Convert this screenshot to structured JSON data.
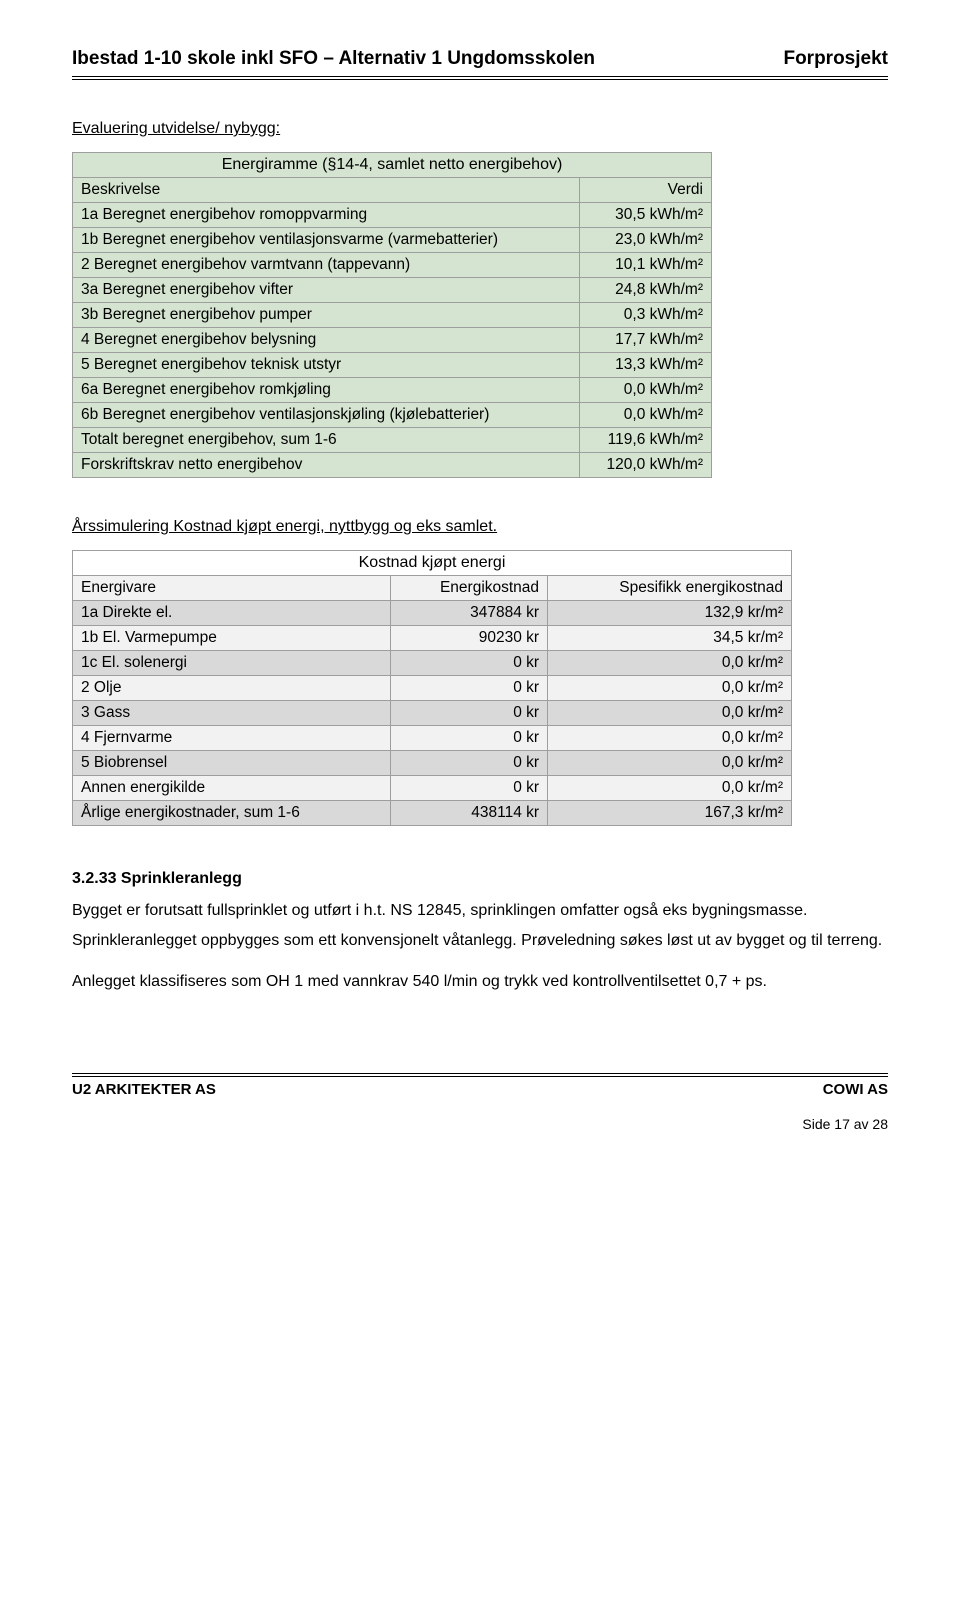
{
  "header": {
    "left": "Ibestad 1-10 skole inkl SFO – Alternativ 1 Ungdomsskolen",
    "right": "Forprosjekt"
  },
  "section1": {
    "title": "Evaluering utvidelse/ nybygg:",
    "caption": "Energiramme (§14-4, samlet netto energibehov)",
    "col_left": "Beskrivelse",
    "col_right": "Verdi",
    "rows": [
      {
        "l": "1a Beregnet energibehov romoppvarming",
        "r": "30,5 kWh/m²"
      },
      {
        "l": "1b Beregnet energibehov ventilasjonsvarme (varmebatterier)",
        "r": "23,0 kWh/m²"
      },
      {
        "l": "2 Beregnet energibehov varmtvann (tappevann)",
        "r": "10,1 kWh/m²"
      },
      {
        "l": "3a Beregnet energibehov vifter",
        "r": "24,8 kWh/m²"
      },
      {
        "l": "3b Beregnet energibehov pumper",
        "r": "0,3 kWh/m²"
      },
      {
        "l": "4 Beregnet energibehov belysning",
        "r": "17,7 kWh/m²"
      },
      {
        "l": "5 Beregnet energibehov teknisk utstyr",
        "r": "13,3 kWh/m²"
      },
      {
        "l": "6a Beregnet energibehov romkjøling",
        "r": "0,0 kWh/m²"
      },
      {
        "l": "6b Beregnet energibehov ventilasjonskjøling (kjølebatterier)",
        "r": "0,0 kWh/m²"
      },
      {
        "l": "Totalt beregnet energibehov, sum 1-6",
        "r": "119,6 kWh/m²"
      },
      {
        "l": "Forskriftskrav netto energibehov",
        "r": "120,0 kWh/m²"
      }
    ]
  },
  "section2": {
    "title": "Årssimulering Kostnad kjøpt energi, nyttbygg og eks samlet.",
    "caption": "Kostnad kjøpt energi",
    "col1": "Energivare",
    "col2": "Energikostnad",
    "col3": "Spesifikk energikostnad",
    "rows": [
      {
        "c1": "1a Direkte el.",
        "c2": "347884 kr",
        "c3": "132,9 kr/m²"
      },
      {
        "c1": "1b El. Varmepumpe",
        "c2": "90230 kr",
        "c3": "34,5 kr/m²"
      },
      {
        "c1": "1c El. solenergi",
        "c2": "0 kr",
        "c3": "0,0 kr/m²"
      },
      {
        "c1": "2   Olje",
        "c2": "0 kr",
        "c3": "0,0 kr/m²"
      },
      {
        "c1": "3   Gass",
        "c2": "0 kr",
        "c3": "0,0 kr/m²"
      },
      {
        "c1": "4   Fjernvarme",
        "c2": "0 kr",
        "c3": "0,0 kr/m²"
      },
      {
        "c1": "5   Biobrensel",
        "c2": "0 kr",
        "c3": "0,0 kr/m²"
      },
      {
        "c1": "Annen energikilde",
        "c2": "0 kr",
        "c3": "0,0 kr/m²"
      },
      {
        "c1": "Årlige energikostnader, sum 1-6",
        "c2": "438114 kr",
        "c3": "167,3 kr/m²"
      }
    ]
  },
  "section3": {
    "heading": "3.2.33 Sprinkleranlegg",
    "p1": "Bygget er forutsatt fullsprinklet og utført i h.t. NS 12845, sprinklingen omfatter også eks bygningsmasse.",
    "p2": "Sprinkleranlegget oppbygges som ett konvensjonelt våtanlegg. Prøveledning søkes løst ut av bygget og til terreng.",
    "p3": "Anlegget klassifiseres som OH 1 med vannkrav 540 l/min og trykk ved kontrollventilsettet 0,7 + ps."
  },
  "footer": {
    "left": "U2 ARKITEKTER AS",
    "right": "COWI AS",
    "page": "Side 17 av 28"
  },
  "colors": {
    "table_green": "#d5e4d0",
    "table_gray_dark": "#d9d9d9",
    "table_gray_light": "#f2f2f2",
    "border": "#9e9e9e"
  }
}
